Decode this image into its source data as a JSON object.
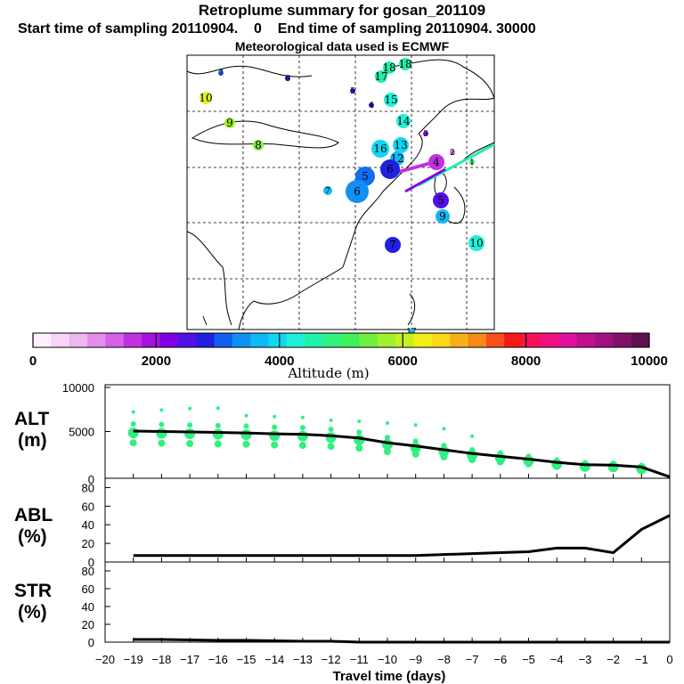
{
  "header": {
    "title": "Retroplume summary for gosan_201109",
    "start_label": "Start time of sampling 20110904.",
    "start_value": "0",
    "end_label": "End time of sampling 20110904. 30000",
    "met_label": "Meteorological data used is ECMWF"
  },
  "colorbar": {
    "ticks": [
      "0",
      "2000",
      "4000",
      "6000",
      "8000",
      "10000"
    ],
    "label": "Altitude  (m)",
    "colors": [
      "#fff0ff",
      "#f5d6f7",
      "#ebb8f0",
      "#e38eea",
      "#d660e8",
      "#c030e0",
      "#a610e0",
      "#8000e8",
      "#5010e8",
      "#2020e0",
      "#1060f0",
      "#1090f5",
      "#10b8f5",
      "#10d8f0",
      "#20f0d8",
      "#20f0a8",
      "#30f080",
      "#40f058",
      "#70f040",
      "#a0f030",
      "#c8f020",
      "#f0f018",
      "#f8d818",
      "#f8b018",
      "#f88818",
      "#f85018",
      "#f81818",
      "#f8105a",
      "#f01080",
      "#e010a0",
      "#c01090",
      "#a01080",
      "#801068",
      "#601050"
    ]
  },
  "map": {
    "points": [
      {
        "n": "18",
        "c": "#20f0a8"
      },
      {
        "n": "18",
        "c": "#20f0a8"
      },
      {
        "n": "17",
        "c": "#20f0a8"
      },
      {
        "n": "7",
        "c": "#1060f0"
      },
      {
        "n": "6",
        "c": "#2020e0"
      },
      {
        "n": "10",
        "c": "#e0f020"
      },
      {
        "n": "5",
        "c": "#2020e0"
      },
      {
        "n": "4",
        "c": "#5010e8"
      },
      {
        "n": "15",
        "c": "#20f0d8"
      },
      {
        "n": "9",
        "c": "#a0f030"
      },
      {
        "n": "14",
        "c": "#20f0d8"
      },
      {
        "n": "8",
        "c": "#80f040"
      },
      {
        "n": "3",
        "c": "#8000e8"
      },
      {
        "n": "16",
        "c": "#10d8f0"
      },
      {
        "n": "13",
        "c": "#10d8f0"
      },
      {
        "n": "12",
        "c": "#10b8f0"
      },
      {
        "n": "5",
        "c": "#1070f0"
      },
      {
        "n": "6",
        "c": "#1090f5"
      },
      {
        "n": "7",
        "c": "#10b8f5"
      },
      {
        "n": "10",
        "c": "#20f0d8"
      },
      {
        "n": "9",
        "c": "#10b8f5"
      },
      {
        "n": "7",
        "c": "#2020e0"
      },
      {
        "n": "6",
        "c": "#2020e0"
      },
      {
        "n": "5",
        "c": "#5010e8"
      },
      {
        "n": "4",
        "c": "#c030e0"
      },
      {
        "n": "2",
        "c": "#d660e8"
      },
      {
        "n": "1",
        "c": "#30f080"
      },
      {
        "n": "17",
        "c": "#10b8f5"
      }
    ]
  },
  "chart_data": [
    {
      "type": "line",
      "name": "ALT",
      "ylabel": "ALT\n(m)",
      "ylabel_line1": "ALT",
      "ylabel_line2": "(m)",
      "ylim": [
        0,
        10000
      ],
      "yticks": [
        "10000",
        "5000",
        "0"
      ],
      "xlim": [
        -20,
        0
      ],
      "x": [
        -19,
        -18,
        -17,
        -16,
        -15,
        -14,
        -13,
        -12,
        -11,
        -10,
        -9,
        -8,
        -7,
        -6,
        -5,
        -4,
        -3,
        -2,
        -1,
        0
      ],
      "values": [
        5050,
        5000,
        4950,
        4900,
        4850,
        4750,
        4700,
        4550,
        4300,
        3800,
        3450,
        3050,
        2650,
        2350,
        2050,
        1700,
        1450,
        1400,
        1200,
        150
      ],
      "scatter_upper": [
        7100,
        7300,
        7450,
        7500,
        6700,
        6600,
        6500,
        6200,
        6100,
        5900,
        5700,
        5300,
        4500,
        null,
        null,
        null,
        null,
        null,
        null,
        null
      ]
    },
    {
      "type": "line",
      "name": "ABL",
      "ylabel_line1": "ABL",
      "ylabel_line2": "(%)",
      "ylim": [
        0,
        90
      ],
      "yticks": [
        "80",
        "60",
        "40",
        "20",
        "0"
      ],
      "xlim": [
        -20,
        0
      ],
      "x": [
        -19,
        -18,
        -17,
        -16,
        -15,
        -14,
        -13,
        -12,
        -11,
        -10,
        -9,
        -8,
        -7,
        -6,
        -5,
        -4,
        -3,
        -2,
        -1,
        0
      ],
      "values": [
        7,
        7,
        7,
        7,
        7,
        7,
        7,
        7,
        7,
        7,
        7,
        8,
        9,
        10,
        11,
        15,
        15,
        10,
        35,
        50
      ]
    },
    {
      "type": "line",
      "name": "STR",
      "ylabel_line1": "STR",
      "ylabel_line2": "(%)",
      "ylim": [
        0,
        90
      ],
      "yticks": [
        "80",
        "60",
        "40",
        "20",
        "0"
      ],
      "xlim": [
        -20,
        0
      ],
      "x": [
        -19,
        -18,
        -17,
        -16,
        -15,
        -14,
        -13,
        -12,
        -11,
        -10,
        -9,
        -8,
        -7,
        -6,
        -5,
        -4,
        -3,
        -2,
        -1,
        0
      ],
      "values": [
        3,
        3,
        2.5,
        2,
        2,
        1.5,
        1,
        1,
        0,
        0,
        0,
        0,
        0,
        0,
        0,
        0,
        0,
        0,
        0,
        0
      ]
    }
  ],
  "xaxis": {
    "ticks": [
      "−20",
      "−19",
      "−18",
      "−17",
      "−16",
      "−15",
      "−14",
      "−13",
      "−12",
      "−11",
      "−10",
      "−9",
      "−8",
      "−7",
      "−6",
      "−5",
      "−4",
      "−3",
      "−2",
      "−1",
      "0"
    ],
    "label": "Travel time (days)"
  }
}
